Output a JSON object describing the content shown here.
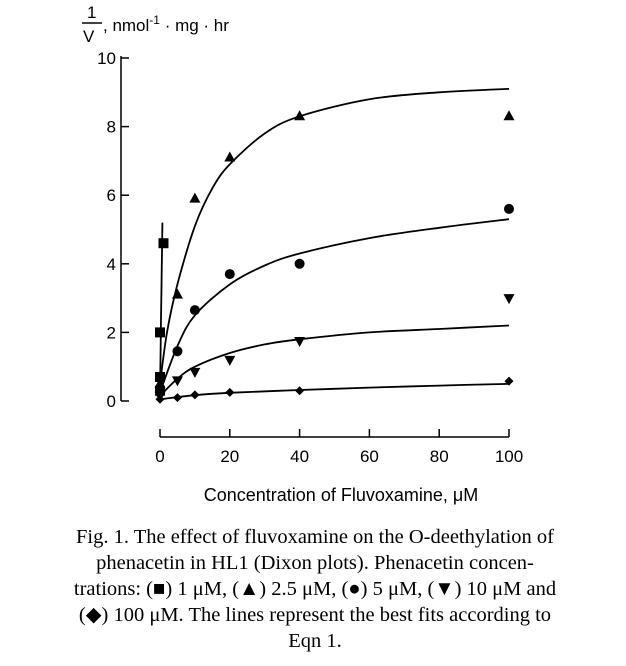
{
  "chart_data": {
    "type": "scatter",
    "ylabel": {
      "num": "1",
      "den": "V",
      "units": ", nmol",
      "sup": "-1",
      "rest": " · mg · hr"
    },
    "xlabel": "Concentration of Fluvoxamine, μM",
    "xlim": [
      0,
      100
    ],
    "ylim": [
      0,
      10
    ],
    "xticks": [
      0,
      20,
      40,
      60,
      80,
      100
    ],
    "yticks": [
      0,
      2,
      4,
      6,
      8,
      10
    ],
    "grid": false,
    "legend": "none",
    "series": [
      {
        "marker": "square",
        "points": [
          [
            0,
            0.3
          ],
          [
            0,
            0.7
          ],
          [
            0,
            2.0
          ],
          [
            1,
            4.6
          ]
        ],
        "fit": [
          [
            0,
            0.3
          ],
          [
            0.15,
            1.2
          ],
          [
            0.3,
            2.4
          ],
          [
            0.5,
            3.8
          ],
          [
            0.7,
            5.2
          ]
        ]
      },
      {
        "marker": "triangle-up",
        "points": [
          [
            0,
            0.5
          ],
          [
            5,
            3.1
          ],
          [
            10,
            5.9
          ],
          [
            20,
            7.1
          ],
          [
            40,
            8.3
          ],
          [
            100,
            8.3
          ]
        ],
        "fit": [
          [
            0,
            0.5
          ],
          [
            2,
            2.0
          ],
          [
            5,
            3.4
          ],
          [
            10,
            5.1
          ],
          [
            15,
            6.2
          ],
          [
            20,
            6.9
          ],
          [
            30,
            7.8
          ],
          [
            40,
            8.3
          ],
          [
            60,
            8.8
          ],
          [
            80,
            9.0
          ],
          [
            100,
            9.1
          ]
        ]
      },
      {
        "marker": "circle",
        "points": [
          [
            0,
            0.25
          ],
          [
            5,
            1.45
          ],
          [
            10,
            2.65
          ],
          [
            20,
            3.7
          ],
          [
            40,
            4.0
          ],
          [
            100,
            5.6
          ]
        ],
        "fit": [
          [
            0,
            0.25
          ],
          [
            5,
            1.6
          ],
          [
            10,
            2.5
          ],
          [
            20,
            3.4
          ],
          [
            30,
            3.95
          ],
          [
            40,
            4.3
          ],
          [
            60,
            4.75
          ],
          [
            80,
            5.05
          ],
          [
            100,
            5.3
          ]
        ]
      },
      {
        "marker": "triangle-down",
        "points": [
          [
            0,
            0.15
          ],
          [
            5,
            0.6
          ],
          [
            10,
            0.85
          ],
          [
            20,
            1.2
          ],
          [
            40,
            1.75
          ],
          [
            100,
            3.0
          ]
        ],
        "fit": [
          [
            0,
            0.15
          ],
          [
            5,
            0.65
          ],
          [
            10,
            1.0
          ],
          [
            20,
            1.4
          ],
          [
            30,
            1.65
          ],
          [
            40,
            1.8
          ],
          [
            60,
            2.0
          ],
          [
            80,
            2.1
          ],
          [
            100,
            2.2
          ]
        ]
      },
      {
        "marker": "diamond",
        "points": [
          [
            0,
            0.05
          ],
          [
            5,
            0.1
          ],
          [
            10,
            0.18
          ],
          [
            20,
            0.25
          ],
          [
            40,
            0.3
          ],
          [
            100,
            0.58
          ]
        ],
        "fit": [
          [
            0,
            0.05
          ],
          [
            10,
            0.17
          ],
          [
            20,
            0.24
          ],
          [
            40,
            0.32
          ],
          [
            60,
            0.39
          ],
          [
            80,
            0.45
          ],
          [
            100,
            0.5
          ]
        ]
      }
    ]
  },
  "caption": {
    "lines": [
      "Fig. 1. The effect of fluvoxamine on the O-deethylation of",
      "phenacetin in HL1 (Dixon plots). Phenacetin concen-",
      "trations: (■) 1 μM, (▲) 2.5 μM, (●) 5 μM, (▼) 10 μM and",
      "(◆) 100 μM. The lines represent the best fits according to",
      "Eqn 1."
    ]
  }
}
